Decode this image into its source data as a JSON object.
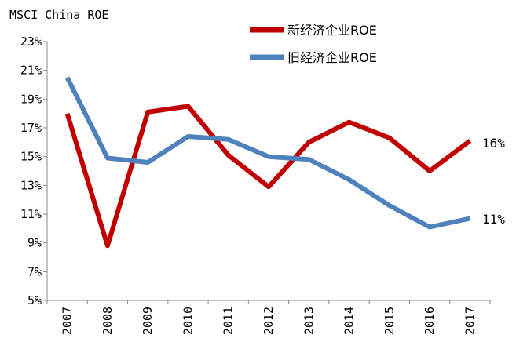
{
  "chart_data": {
    "type": "line",
    "title": "MSCI China ROE",
    "x": [
      "2007",
      "2008",
      "2009",
      "2010",
      "2011",
      "2012",
      "2013",
      "2014",
      "2015",
      "2016",
      "2017"
    ],
    "series": [
      {
        "name": "新经济企业ROE",
        "color": "#c00000",
        "values": [
          18.0,
          8.8,
          18.1,
          18.5,
          15.1,
          12.9,
          16.0,
          17.4,
          16.3,
          14.0,
          16.1
        ]
      },
      {
        "name": "旧经济企业ROE",
        "color": "#4f81bd",
        "values": [
          20.5,
          14.9,
          14.6,
          16.4,
          16.2,
          15.0,
          14.8,
          13.4,
          11.6,
          10.1,
          10.7
        ]
      }
    ],
    "end_labels": [
      "16%",
      "11%"
    ],
    "y_ticks": [
      "5%",
      "7%",
      "9%",
      "11%",
      "13%",
      "15%",
      "17%",
      "19%",
      "21%",
      "23%"
    ],
    "ylim": [
      5,
      23
    ],
    "y_unit": "%",
    "grid": false,
    "legend": "top-right"
  }
}
